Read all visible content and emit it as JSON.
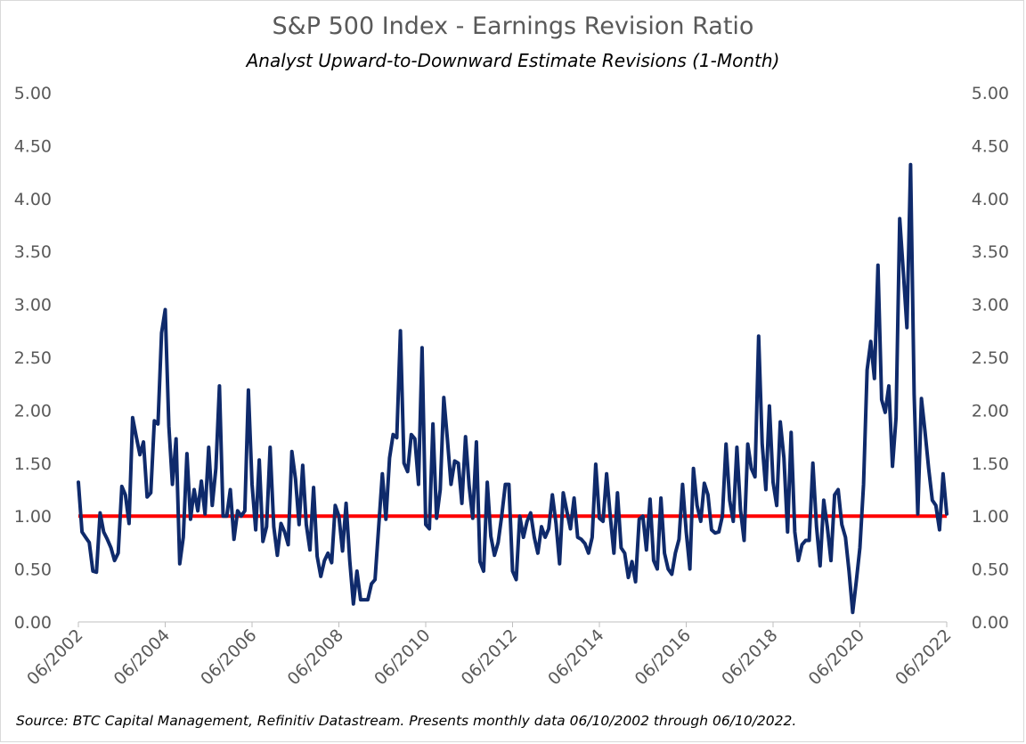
{
  "chart_data": {
    "type": "line",
    "title": "S&P 500 Index - Earnings Revision Ratio",
    "subtitle": "Analyst Upward-to-Downward Estimate Revisions (1-Month)",
    "source": "Source: BTC Capital Management, Refinitiv Datastream. Presents monthly data 06/10/2002 through 06/10/2022.",
    "xlabel": "",
    "ylabel": "",
    "ylim": [
      0,
      5
    ],
    "y_ticks": [
      "0.00",
      "0.50",
      "1.00",
      "1.50",
      "2.00",
      "2.50",
      "3.00",
      "3.50",
      "4.00",
      "4.50",
      "5.00"
    ],
    "y_tick_values": [
      0,
      0.5,
      1,
      1.5,
      2,
      2.5,
      3,
      3.5,
      4,
      4.5,
      5
    ],
    "secondary_y_axis": true,
    "x_range": [
      "06/2002",
      "06/2022"
    ],
    "x_ticks": [
      "06/2002",
      "06/2004",
      "06/2006",
      "06/2008",
      "06/2010",
      "06/2012",
      "06/2014",
      "06/2016",
      "06/2018",
      "06/2020",
      "06/2022"
    ],
    "grid": false,
    "reference_line": {
      "value": 1.0,
      "color": "#ff0000"
    },
    "series_color": "#0f2a6b",
    "series": [
      {
        "x": [
          "06/2002",
          "07/2002",
          "08/2002",
          "09/2002",
          "10/2002",
          "11/2002",
          "12/2002",
          "01/2003",
          "02/2003",
          "03/2003",
          "04/2003",
          "05/2003",
          "06/2003",
          "07/2003",
          "08/2003",
          "09/2003",
          "10/2003",
          "11/2003",
          "12/2003",
          "01/2004",
          "02/2004",
          "03/2004",
          "04/2004",
          "05/2004",
          "06/2004",
          "07/2004",
          "08/2004",
          "09/2004",
          "10/2004",
          "11/2004",
          "12/2004",
          "01/2005",
          "02/2005",
          "03/2005",
          "04/2005",
          "05/2005",
          "06/2005",
          "07/2005",
          "08/2005",
          "09/2005",
          "10/2005",
          "11/2005",
          "12/2005",
          "01/2006",
          "02/2006",
          "03/2006",
          "04/2006",
          "05/2006",
          "06/2006",
          "07/2006",
          "08/2006",
          "09/2006",
          "10/2006",
          "11/2006",
          "12/2006",
          "01/2007",
          "02/2007",
          "03/2007",
          "04/2007",
          "05/2007",
          "06/2007",
          "07/2007",
          "08/2007",
          "09/2007",
          "10/2007",
          "11/2007",
          "12/2007",
          "01/2008",
          "02/2008",
          "03/2008",
          "04/2008",
          "05/2008",
          "06/2008",
          "07/2008",
          "08/2008",
          "09/2008",
          "10/2008",
          "11/2008",
          "12/2008",
          "01/2009",
          "02/2009",
          "03/2009",
          "04/2009",
          "05/2009",
          "06/2009",
          "07/2009",
          "08/2009",
          "09/2009",
          "10/2009",
          "11/2009",
          "12/2009",
          "01/2010",
          "02/2010",
          "03/2010",
          "04/2010",
          "05/2010",
          "06/2010",
          "07/2010",
          "08/2010",
          "09/2010",
          "10/2010",
          "11/2010",
          "12/2010",
          "01/2011",
          "02/2011",
          "03/2011",
          "04/2011",
          "05/2011",
          "06/2011",
          "07/2011",
          "08/2011",
          "09/2011",
          "10/2011",
          "11/2011",
          "12/2011",
          "01/2012",
          "02/2012",
          "03/2012",
          "04/2012",
          "05/2012",
          "06/2012",
          "07/2012",
          "08/2012",
          "09/2012",
          "10/2012",
          "11/2012",
          "12/2012",
          "01/2013",
          "02/2013",
          "03/2013",
          "04/2013",
          "05/2013",
          "06/2013",
          "07/2013",
          "08/2013",
          "09/2013",
          "10/2013",
          "11/2013",
          "12/2013",
          "01/2014",
          "02/2014",
          "03/2014",
          "04/2014",
          "05/2014",
          "06/2014",
          "07/2014",
          "08/2014",
          "09/2014",
          "10/2014",
          "11/2014",
          "12/2014",
          "01/2015",
          "02/2015",
          "03/2015",
          "04/2015",
          "05/2015",
          "06/2015",
          "07/2015",
          "08/2015",
          "09/2015",
          "10/2015",
          "11/2015",
          "12/2015",
          "01/2016",
          "02/2016",
          "03/2016",
          "04/2016",
          "05/2016",
          "06/2016",
          "07/2016",
          "08/2016",
          "09/2016",
          "10/2016",
          "11/2016",
          "12/2016",
          "01/2017",
          "02/2017",
          "03/2017",
          "04/2017",
          "05/2017",
          "06/2017",
          "07/2017",
          "08/2017",
          "09/2017",
          "10/2017",
          "11/2017",
          "12/2017",
          "01/2018",
          "02/2018",
          "03/2018",
          "04/2018",
          "05/2018",
          "06/2018",
          "07/2018",
          "08/2018",
          "09/2018",
          "10/2018",
          "11/2018",
          "12/2018",
          "01/2019",
          "02/2019",
          "03/2019",
          "04/2019",
          "05/2019",
          "06/2019",
          "07/2019",
          "08/2019",
          "09/2019",
          "10/2019",
          "11/2019",
          "12/2019",
          "01/2020",
          "02/2020",
          "03/2020",
          "04/2020",
          "05/2020",
          "06/2020",
          "07/2020",
          "08/2020",
          "09/2020",
          "10/2020",
          "11/2020",
          "12/2020",
          "01/2021",
          "02/2021",
          "03/2021",
          "04/2021",
          "05/2021",
          "06/2021",
          "07/2021",
          "08/2021",
          "09/2021",
          "10/2021",
          "11/2021",
          "12/2021",
          "01/2022",
          "02/2022",
          "03/2022",
          "04/2022",
          "05/2022",
          "06/2022"
        ],
        "y": [
          1.32,
          0.85,
          0.8,
          0.75,
          0.48,
          0.47,
          1.03,
          0.85,
          0.78,
          0.7,
          0.58,
          0.65,
          1.28,
          1.2,
          0.93,
          1.93,
          1.75,
          1.58,
          1.7,
          1.18,
          1.22,
          1.9,
          1.87,
          2.73,
          2.95,
          1.85,
          1.3,
          1.73,
          0.55,
          0.8,
          1.59,
          0.97,
          1.25,
          1.05,
          1.33,
          1.02,
          1.65,
          1.1,
          1.45,
          2.23,
          1.0,
          1.0,
          1.25,
          0.78,
          1.05,
          1.0,
          1.05,
          2.19,
          1.3,
          0.87,
          1.53,
          0.76,
          0.9,
          1.65,
          0.9,
          0.63,
          0.93,
          0.85,
          0.73,
          1.61,
          1.35,
          0.92,
          1.48,
          0.92,
          0.68,
          1.27,
          0.62,
          0.43,
          0.58,
          0.65,
          0.56,
          1.1,
          1.0,
          0.67,
          1.12,
          0.58,
          0.17,
          0.48,
          0.21,
          0.21,
          0.21,
          0.36,
          0.4,
          0.9,
          1.4,
          0.97,
          1.55,
          1.77,
          1.74,
          2.75,
          1.5,
          1.42,
          1.77,
          1.73,
          1.3,
          2.59,
          0.92,
          0.88,
          1.87,
          0.98,
          1.25,
          2.12,
          1.72,
          1.3,
          1.52,
          1.5,
          1.12,
          1.75,
          1.28,
          0.98,
          1.7,
          0.57,
          0.48,
          1.32,
          0.81,
          0.63,
          0.75,
          1.0,
          1.3,
          1.3,
          0.48,
          0.4,
          1.0,
          0.8,
          0.95,
          1.03,
          0.8,
          0.65,
          0.9,
          0.8,
          0.88,
          1.2,
          0.93,
          0.55,
          1.22,
          1.05,
          0.88,
          1.17,
          0.8,
          0.78,
          0.74,
          0.65,
          0.8,
          1.49,
          0.98,
          0.95,
          1.4,
          1.0,
          0.65,
          1.22,
          0.7,
          0.65,
          0.42,
          0.57,
          0.38,
          0.97,
          1.0,
          0.68,
          1.16,
          0.58,
          0.5,
          1.17,
          0.65,
          0.5,
          0.45,
          0.65,
          0.78,
          1.3,
          0.85,
          0.5,
          1.45,
          1.1,
          0.95,
          1.31,
          1.2,
          0.87,
          0.84,
          0.85,
          1.0,
          1.68,
          1.15,
          0.95,
          1.65,
          1.06,
          0.77,
          1.68,
          1.45,
          1.37,
          2.7,
          1.68,
          1.25,
          2.04,
          1.32,
          1.1,
          1.89,
          1.55,
          0.85,
          1.79,
          0.85,
          0.58,
          0.73,
          0.77,
          0.77,
          1.5,
          0.9,
          0.53,
          1.15,
          0.9,
          0.58,
          1.2,
          1.25,
          0.92,
          0.8,
          0.48,
          0.09,
          0.38,
          0.7,
          1.3,
          2.38,
          2.65,
          2.3,
          3.37,
          2.1,
          1.98,
          2.23,
          1.47,
          1.93,
          3.81,
          3.3,
          2.78,
          4.32,
          2.15,
          1.02,
          2.11,
          1.8,
          1.45,
          1.15,
          1.1,
          0.87,
          1.4,
          1.02
        ]
      }
    ]
  }
}
